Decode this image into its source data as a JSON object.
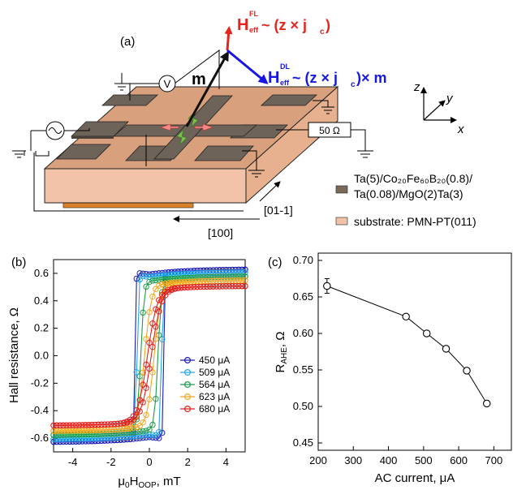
{
  "panel_a": {
    "label": "(a)",
    "m_label": "m",
    "v_label": "V",
    "ohm_label": "50 Ω",
    "hfl": {
      "h": "H",
      "sup": "FL",
      "sub": "eff",
      "formula": "~ (z × j",
      "jsub": "c",
      "close": ")",
      "color": "#e8221c"
    },
    "hdl": {
      "h": "H",
      "sup": "DL",
      "sub": "eff",
      "formula": "~ (z × j",
      "jsub": "c",
      "close": ")× m",
      "color": "#1616e6"
    },
    "axes": {
      "z": "z",
      "y": "y",
      "x": "x"
    },
    "dir_011": "[01-1]",
    "dir_100": "[100]",
    "legend": [
      {
        "name": "legend-film",
        "color": "#7a6a5a",
        "line1": "Ta(5)/Co₂₀Fe₆₀B₂₀(0.8)/",
        "line2": "Ta(0.08)/MgO(2)Ta(3)"
      },
      {
        "name": "legend-substrate",
        "color": "#f2c3a8",
        "line1": "substrate: PMN-PT(011)",
        "line2": ""
      }
    ]
  },
  "chart_data": [
    {
      "panel": "(b)",
      "type": "line",
      "ylabel": "Hall resistance, Ω",
      "xlabel": "μ₀H_OOP, mT",
      "xlim": [
        -5,
        5
      ],
      "ylim": [
        -0.7,
        0.7
      ],
      "xticks": [
        -4,
        -2,
        0,
        2,
        4
      ],
      "yticks": [
        -0.6,
        -0.4,
        -0.2,
        0.0,
        0.2,
        0.4,
        0.6
      ],
      "series": [
        {
          "name": "450 μA",
          "color": "#1a1ab8",
          "sat": 0.63,
          "hc": 0.75,
          "w": 0.05
        },
        {
          "name": "509 μA",
          "color": "#22a7e8",
          "sat": 0.61,
          "hc": 0.65,
          "w": 0.08
        },
        {
          "name": "564 μA",
          "color": "#1f9a4a",
          "sat": 0.58,
          "hc": 0.45,
          "w": 0.18
        },
        {
          "name": "623 μA",
          "color": "#f2a51c",
          "sat": 0.55,
          "hc": 0.25,
          "w": 0.35
        },
        {
          "name": "680 μA",
          "color": "#e0201c",
          "sat": 0.51,
          "hc": 0.1,
          "w": 0.5
        }
      ]
    },
    {
      "panel": "(c)",
      "type": "line",
      "ylabel": "R_AHE, Ω",
      "xlabel": "AC current, μA",
      "xlim": [
        200,
        750
      ],
      "ylim": [
        0.44,
        0.71
      ],
      "xticks": [
        200,
        300,
        400,
        500,
        600,
        700
      ],
      "yticks": [
        0.45,
        0.5,
        0.55,
        0.6,
        0.65,
        0.7
      ],
      "x": [
        225,
        450,
        509,
        564,
        623,
        680
      ],
      "values": [
        0.665,
        0.623,
        0.6,
        0.579,
        0.549,
        0.504
      ],
      "err": [
        0.01,
        0.003,
        0.003,
        0.003,
        0.003,
        0.003
      ]
    }
  ]
}
